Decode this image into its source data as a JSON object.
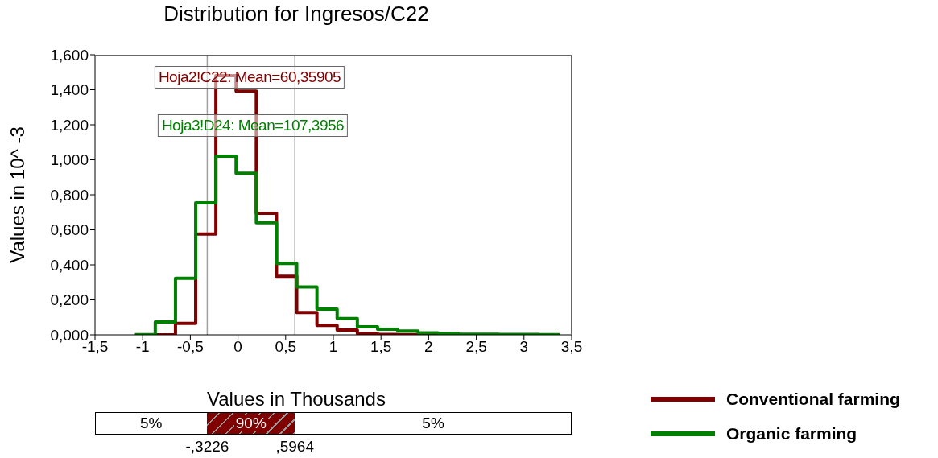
{
  "chart_data": {
    "type": "histogram",
    "title": "Distribution for Ingresos/C22",
    "xlabel": "Values in Thousands",
    "ylabel": "Values in 10^ -3",
    "bins": [
      -1.08,
      -0.868,
      -0.656,
      -0.444,
      -0.232,
      -0.02,
      0.192,
      0.404,
      0.616,
      0.828,
      1.04,
      1.252,
      1.464,
      1.676,
      1.888,
      2.1,
      2.312,
      2.524,
      2.736,
      2.948,
      3.16,
      3.372
    ],
    "series": [
      {
        "name": "Conventional farming",
        "color": "#800000",
        "values": [
          0,
          0,
          0.066,
          0.576,
          1.48,
          1.392,
          0.694,
          0.334,
          0.128,
          0.054,
          0.028,
          0.008,
          0.002,
          0.001,
          0,
          0,
          0,
          0,
          0,
          0,
          0
        ]
      },
      {
        "name": "Organic farming",
        "color": "#008000",
        "values": [
          0.001,
          0.074,
          0.323,
          0.754,
          1.021,
          0.923,
          0.64,
          0.408,
          0.274,
          0.147,
          0.093,
          0.046,
          0.032,
          0.022,
          0.012,
          0.008,
          0.004,
          0.003,
          0.002,
          0.002,
          0.001
        ]
      }
    ],
    "xlim": [
      -1.5,
      3.5
    ],
    "xticks": [
      {
        "value": -1.5,
        "label": "-1,5"
      },
      -1,
      {
        "value": -0.5,
        "label": "-0,5"
      },
      0,
      {
        "value": 0.5,
        "label": "0,5"
      },
      1,
      {
        "value": 1.5,
        "label": "1,5"
      },
      2,
      {
        "value": 2.5,
        "label": "2,5"
      },
      3,
      {
        "value": 3.5,
        "label": "3,5"
      }
    ],
    "ylim": [
      0,
      1.6
    ],
    "yticks": [
      {
        "value": 0,
        "label": "0,000"
      },
      {
        "value": 0.2,
        "label": "0,200"
      },
      {
        "value": 0.4,
        "label": "0,400"
      },
      {
        "value": 0.6,
        "label": "0,600"
      },
      {
        "value": 0.8,
        "label": "0,800"
      },
      {
        "value": 1,
        "label": "1,000"
      },
      {
        "value": 1.2,
        "label": "1,200"
      },
      {
        "value": 1.4,
        "label": "1,400"
      },
      {
        "value": 1.6,
        "label": "1,600"
      }
    ],
    "ref_lines": [
      {
        "axis": "x",
        "value": -0.3226,
        "color": "#a0a0a0"
      },
      {
        "axis": "x",
        "value": 0.5964,
        "color": "#a0a0a0"
      }
    ],
    "annotations": [
      "Hoja2!C22: Mean=60,35905",
      "Hoja3!D24: Mean=107,3956",
      "5%",
      "90%",
      "5%",
      "-,3226",
      ",5964"
    ],
    "legend": "bottom right"
  }
}
